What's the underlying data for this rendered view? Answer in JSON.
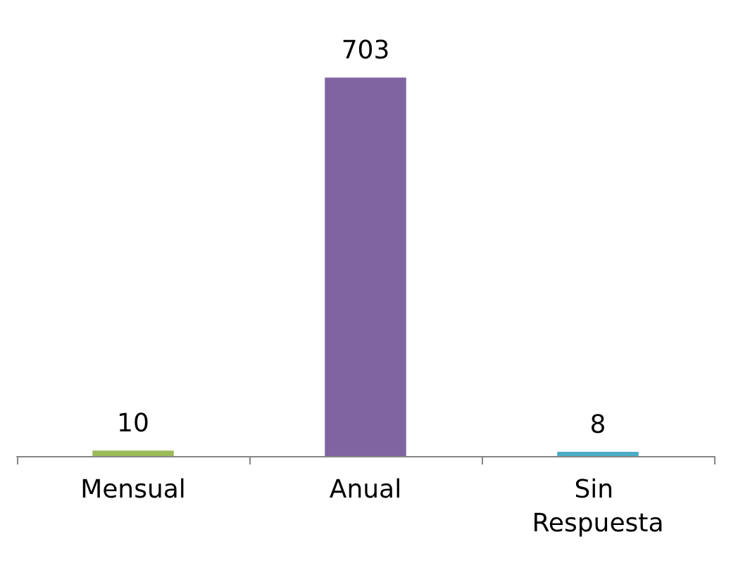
{
  "chart_data": {
    "type": "bar",
    "categories": [
      "Mensual",
      "Anual",
      "Sin Respuesta"
    ],
    "values": [
      10,
      703,
      8
    ],
    "colors": [
      "#9bbb59",
      "#8064a2",
      "#4bacc6"
    ],
    "data_labels": true
  }
}
